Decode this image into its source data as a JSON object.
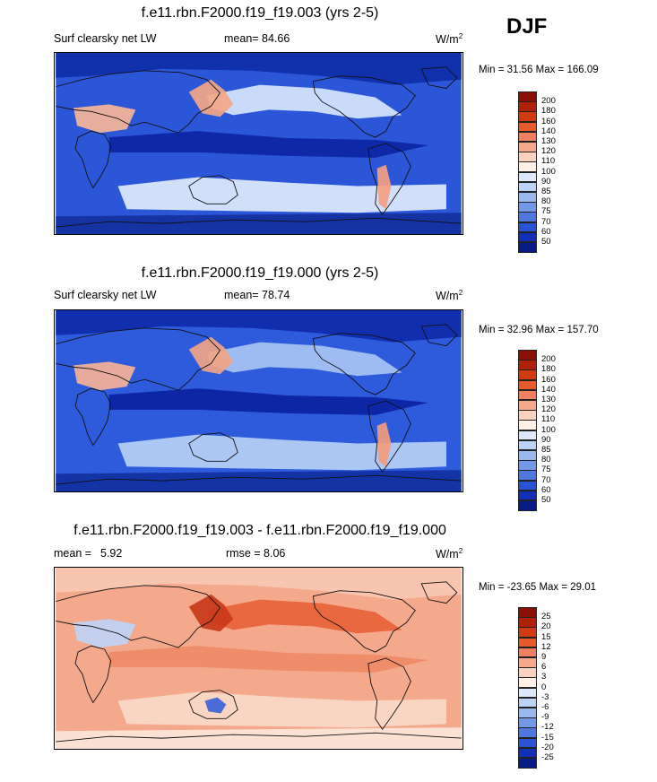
{
  "season": "DJF",
  "panels": [
    {
      "title": "f.e11.rbn.F2000.f19_f19.003 (yrs 2-5)",
      "left_label": "Surf clearsky net LW",
      "stat_label": "mean=",
      "stat_value": "84.66",
      "rmse_label": "",
      "rmse_value": "",
      "units": "W/m",
      "units_exp": "2",
      "minmax": "Min =  31.56 Max = 166.09",
      "colorbar": {
        "labels": [
          "200",
          "180",
          "160",
          "140",
          "130",
          "120",
          "110",
          "100",
          "90",
          "85",
          "80",
          "75",
          "70",
          "60",
          "50"
        ],
        "colors": [
          "#8a1005",
          "#b22008",
          "#d23a10",
          "#e85a2a",
          "#f08060",
          "#f5a88c",
          "#fbd2c0",
          "#fff1e6",
          "#dde8fb",
          "#bcd2f6",
          "#98b8ef",
          "#7498e8",
          "#4e78e0",
          "#2a52d4",
          "#1030b8",
          "#081c88"
        ]
      },
      "map": {
        "background": "#2c56d8",
        "zones": [
          {
            "color": "#0f2ca8",
            "name": "polar-north"
          },
          {
            "color": "#d7e6fb",
            "name": "midlat-north"
          },
          {
            "color": "#f3a787",
            "name": "kuroshio"
          },
          {
            "color": "#0c24a4",
            "name": "tropics"
          },
          {
            "color": "#dfeafc",
            "name": "midlat-south"
          },
          {
            "color": "#13309e",
            "name": "antarctic"
          },
          {
            "color": "#f7b598",
            "name": "sahara"
          },
          {
            "color": "#f4a080",
            "name": "andes"
          }
        ]
      }
    },
    {
      "title": "f.e11.rbn.F2000.f19_f19.000 (yrs 2-5)",
      "left_label": "Surf clearsky net LW",
      "stat_label": "mean=",
      "stat_value": "78.74",
      "rmse_label": "",
      "rmse_value": "",
      "units": "W/m",
      "units_exp": "2",
      "minmax": "Min =  32.96 Max = 157.70",
      "colorbar": {
        "labels": [
          "200",
          "180",
          "160",
          "140",
          "130",
          "120",
          "110",
          "100",
          "90",
          "85",
          "80",
          "75",
          "70",
          "60",
          "50"
        ],
        "colors": [
          "#8a1005",
          "#b22008",
          "#d23a10",
          "#e85a2a",
          "#f08060",
          "#f5a88c",
          "#fbd2c0",
          "#fff1e6",
          "#dde8fb",
          "#bcd2f6",
          "#98b8ef",
          "#7498e8",
          "#4e78e0",
          "#2a52d4",
          "#1030b8",
          "#081c88"
        ]
      },
      "map": {
        "background": "#2e5bdc",
        "zones": [
          {
            "color": "#0e2aa8",
            "name": "polar-north"
          },
          {
            "color": "#a9c4f3",
            "name": "midlat-north"
          },
          {
            "color": "#f1a485",
            "name": "kuroshio"
          },
          {
            "color": "#0b22a0",
            "name": "tropics"
          },
          {
            "color": "#b9d0f6",
            "name": "midlat-south"
          },
          {
            "color": "#12309e",
            "name": "antarctic"
          },
          {
            "color": "#f6b296",
            "name": "sahara"
          },
          {
            "color": "#f29c7c",
            "name": "andes"
          }
        ]
      }
    },
    {
      "title": "f.e11.rbn.F2000.f19_f19.003 - f.e11.rbn.F2000.f19_f19.000",
      "left_label": "mean =",
      "stat_label": "",
      "stat_value": "5.92",
      "rmse_label": "rmse =",
      "rmse_value": "8.06",
      "units": "W/m",
      "units_exp": "2",
      "minmax": "Min = -23.65 Max =  29.01",
      "colorbar": {
        "labels": [
          "25",
          "20",
          "15",
          "12",
          "9",
          "6",
          "3",
          "0",
          "-3",
          "-6",
          "-9",
          "-12",
          "-15",
          "-20",
          "-25"
        ],
        "colors": [
          "#8a1005",
          "#b22008",
          "#d23a10",
          "#e85a2a",
          "#f08060",
          "#f5a88c",
          "#fbd2c0",
          "#fff1e6",
          "#dde8fb",
          "#bcd2f6",
          "#98b8ef",
          "#7498e8",
          "#4e78e0",
          "#2a52d4",
          "#1030b8",
          "#081c88"
        ]
      },
      "map": {
        "background": "#f4a98d",
        "zones": [
          {
            "color": "#f7c9b3",
            "name": "polar-north"
          },
          {
            "color": "#e8633a",
            "name": "midlat-north"
          },
          {
            "color": "#c9381a",
            "name": "kuroshio"
          },
          {
            "color": "#ee8a66",
            "name": "tropics"
          },
          {
            "color": "#f9d9c8",
            "name": "midlat-south"
          },
          {
            "color": "#fbe6da",
            "name": "antarctic"
          },
          {
            "color": "#bfd3f6",
            "name": "sahara"
          },
          {
            "color": "#3b63d8",
            "name": "australia"
          }
        ]
      }
    }
  ]
}
